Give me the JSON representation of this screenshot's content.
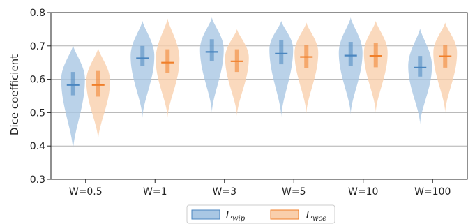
{
  "chart_data": {
    "type": "violin",
    "ylabel": "Dice coefficient",
    "ylim": [
      0.3,
      0.8
    ],
    "yticks": [
      "0.3",
      "0.4",
      "0.5",
      "0.6",
      "0.7",
      "0.8"
    ],
    "ytick_values": [
      0.3,
      0.4,
      0.5,
      0.6,
      0.7,
      0.8
    ],
    "grid": "horizontal",
    "legend_position": "bottom-center",
    "categories": [
      "W=0.5",
      "W=1",
      "W=3",
      "W=5",
      "W=10",
      "W=100"
    ],
    "series": [
      {
        "name": "L",
        "name_subscript": "wip",
        "color": "#4a86c0",
        "fill": "#a9c7e4",
        "medians": [
          0.583,
          0.663,
          0.682,
          0.677,
          0.671,
          0.635
        ],
        "q1": [
          0.552,
          0.64,
          0.655,
          0.645,
          0.64,
          0.608
        ],
        "q3": [
          0.622,
          0.7,
          0.72,
          0.718,
          0.712,
          0.67
        ],
        "min": [
          0.385,
          0.485,
          0.5,
          0.487,
          0.495,
          0.465
        ],
        "max": [
          0.702,
          0.775,
          0.785,
          0.775,
          0.785,
          0.752
        ],
        "peak": [
          0.6,
          0.67,
          0.69,
          0.69,
          0.68,
          0.64
        ]
      },
      {
        "name": "L",
        "name_subscript": "wce",
        "color": "#f07f2a",
        "fill": "#f9cfac",
        "medians": [
          0.583,
          0.65,
          0.654,
          0.667,
          0.67,
          0.669
        ],
        "q1": [
          0.548,
          0.618,
          0.622,
          0.633,
          0.636,
          0.635
        ],
        "q3": [
          0.625,
          0.69,
          0.69,
          0.702,
          0.71,
          0.703
        ],
        "min": [
          0.418,
          0.485,
          0.49,
          0.497,
          0.5,
          0.5
        ],
        "max": [
          0.693,
          0.782,
          0.75,
          0.77,
          0.775,
          0.77
        ],
        "peak": [
          0.595,
          0.66,
          0.665,
          0.68,
          0.68,
          0.68
        ]
      }
    ]
  }
}
